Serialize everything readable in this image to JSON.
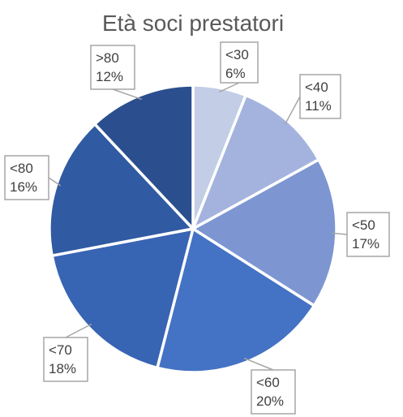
{
  "chart_data": {
    "type": "pie",
    "title": "Età soci prestatori",
    "categories": [
      "<30",
      "<40",
      "<50",
      "<60",
      "<70",
      "<80",
      ">80"
    ],
    "values": [
      6,
      11,
      17,
      20,
      18,
      16,
      12
    ],
    "value_labels": [
      "6%",
      "11%",
      "17%",
      "20%",
      "18%",
      "16%",
      "12%"
    ],
    "colors": [
      "#c3cde6",
      "#a4b3de",
      "#7d96d2",
      "#4472c4",
      "#3864b4",
      "#305aa2",
      "#2b4f8e"
    ],
    "legend": "none",
    "data_labels": "callouts with leader lines"
  }
}
